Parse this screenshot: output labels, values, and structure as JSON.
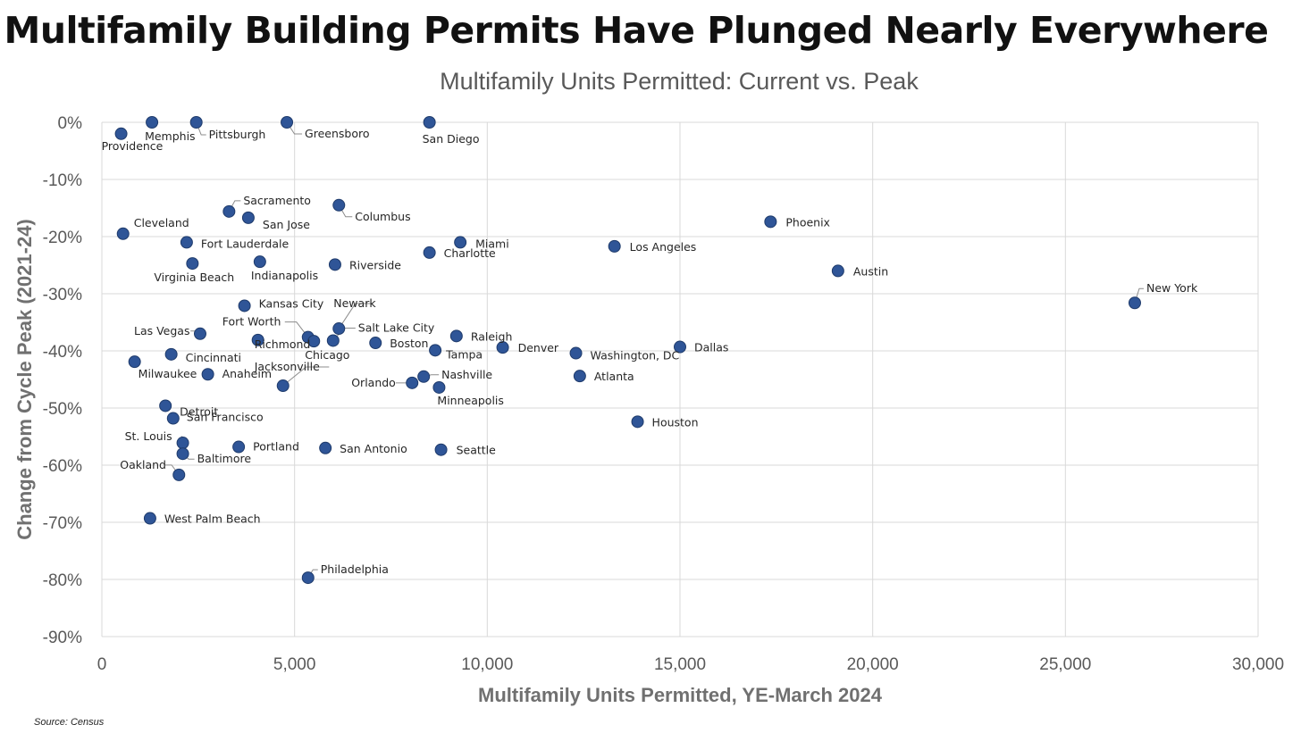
{
  "title": "Multifamily Building Permits Have Plunged Nearly Everywhere",
  "source": "Source: Census",
  "chart_data": {
    "type": "scatter",
    "title": "Multifamily Units Permitted: Current vs. Peak",
    "xlabel": "Multifamily Units Permitted, YE-March 2024",
    "ylabel": "Change from Cycle Peak (2021-24)",
    "xlim": [
      0,
      30000
    ],
    "ylim": [
      -90,
      0
    ],
    "x_ticks": [
      "0",
      "5,000",
      "10,000",
      "15,000",
      "20,000",
      "25,000",
      "30,000"
    ],
    "y_ticks": [
      "0%",
      "-10%",
      "-20%",
      "-30%",
      "-40%",
      "-50%",
      "-60%",
      "-70%",
      "-80%",
      "-90%"
    ],
    "grid": true,
    "marker_color": "#2f5597",
    "points": [
      {
        "label": "Providence",
        "x": 500,
        "y": -2
      },
      {
        "label": "Memphis",
        "x": 1300,
        "y": 0
      },
      {
        "label": "Pittsburgh",
        "x": 2450,
        "y": 0
      },
      {
        "label": "Greensboro",
        "x": 4800,
        "y": 0
      },
      {
        "label": "San Diego",
        "x": 8500,
        "y": 0
      },
      {
        "label": "Sacramento",
        "x": 3300,
        "y": -15.6
      },
      {
        "label": "San Jose",
        "x": 3800,
        "y": -16.7
      },
      {
        "label": "Columbus",
        "x": 6150,
        "y": -14.5
      },
      {
        "label": "Cleveland",
        "x": 550,
        "y": -19.5
      },
      {
        "label": "Fort Lauderdale",
        "x": 2200,
        "y": -21
      },
      {
        "label": "Miami",
        "x": 9300,
        "y": -21
      },
      {
        "label": "Charlotte",
        "x": 8500,
        "y": -22.8
      },
      {
        "label": "Phoenix",
        "x": 17350,
        "y": -17.4
      },
      {
        "label": "Los Angeles",
        "x": 13300,
        "y": -21.7
      },
      {
        "label": "Virginia Beach",
        "x": 2350,
        "y": -24.7
      },
      {
        "label": "Indianapolis",
        "x": 4100,
        "y": -24.4
      },
      {
        "label": "Riverside",
        "x": 6050,
        "y": -24.9
      },
      {
        "label": "Austin",
        "x": 19100,
        "y": -26
      },
      {
        "label": "New York",
        "x": 26800,
        "y": -31.6
      },
      {
        "label": "Kansas City",
        "x": 3700,
        "y": -32.1
      },
      {
        "label": "Newark",
        "x": 6150,
        "y": -36.1
      },
      {
        "label": "Salt Lake City",
        "x": 6000,
        "y": -38.2
      },
      {
        "label": "Fort Worth",
        "x": 5350,
        "y": -37.6
      },
      {
        "label": "Richmond",
        "x": 4050,
        "y": -38.1
      },
      {
        "label": "Chicago",
        "x": 5500,
        "y": -38.3
      },
      {
        "label": "Las Vegas",
        "x": 2550,
        "y": -37
      },
      {
        "label": "Boston",
        "x": 7100,
        "y": -38.6
      },
      {
        "label": "Raleigh",
        "x": 9200,
        "y": -37.4
      },
      {
        "label": "Tampa",
        "x": 8650,
        "y": -39.9
      },
      {
        "label": "Denver",
        "x": 10400,
        "y": -39.4
      },
      {
        "label": "Dallas",
        "x": 15000,
        "y": -39.3
      },
      {
        "label": "Washington, DC",
        "x": 12300,
        "y": -40.4
      },
      {
        "label": "Cincinnati",
        "x": 1800,
        "y": -40.6
      },
      {
        "label": "Milwaukee",
        "x": 850,
        "y": -41.9
      },
      {
        "label": "Anaheim",
        "x": 2750,
        "y": -44.1
      },
      {
        "label": "Jacksonville",
        "x": 4700,
        "y": -46.1
      },
      {
        "label": "Orlando",
        "x": 8050,
        "y": -45.6
      },
      {
        "label": "Nashville",
        "x": 8350,
        "y": -44.5
      },
      {
        "label": "Minneapolis",
        "x": 8750,
        "y": -46.4
      },
      {
        "label": "Atlanta",
        "x": 12400,
        "y": -44.4
      },
      {
        "label": "Detroit",
        "x": 1650,
        "y": -49.6
      },
      {
        "label": "San Francisco",
        "x": 1850,
        "y": -51.8
      },
      {
        "label": "Houston",
        "x": 13900,
        "y": -52.4
      },
      {
        "label": "St. Louis",
        "x": 2100,
        "y": -56.1
      },
      {
        "label": "Baltimore",
        "x": 2100,
        "y": -58
      },
      {
        "label": "Portland",
        "x": 3550,
        "y": -56.8
      },
      {
        "label": "San Antonio",
        "x": 5800,
        "y": -57
      },
      {
        "label": "Seattle",
        "x": 8800,
        "y": -57.3
      },
      {
        "label": "Oakland",
        "x": 2000,
        "y": -61.7
      },
      {
        "label": "West Palm Beach",
        "x": 1250,
        "y": -69.3
      },
      {
        "label": "Philadelphia",
        "x": 5350,
        "y": -79.7
      }
    ]
  }
}
